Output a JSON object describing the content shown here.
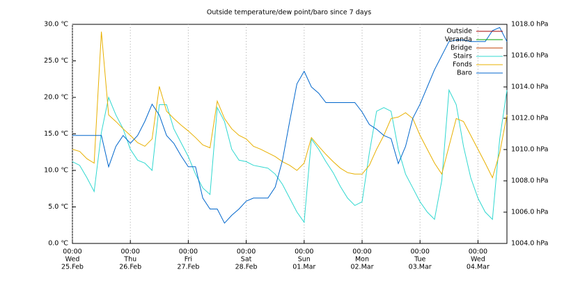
{
  "chart_data": {
    "type": "line",
    "title": "Outside temperature/dew point/baro since 7 days",
    "x": [
      0,
      3,
      6,
      9,
      12,
      15,
      18,
      21,
      24,
      27,
      30,
      33,
      36,
      39,
      42,
      45,
      48,
      51,
      54,
      57,
      60,
      63,
      66,
      69,
      72,
      75,
      78,
      81,
      84,
      87,
      90,
      93,
      96,
      99,
      102,
      105,
      108,
      111,
      114,
      117,
      120,
      123,
      126,
      129,
      132,
      135,
      138,
      141,
      144,
      147,
      150,
      153,
      156,
      159,
      162,
      165,
      168,
      171,
      174,
      177,
      180
    ],
    "xlim": [
      0,
      180
    ],
    "xticks": [
      {
        "value": 0,
        "label": [
          "00:00",
          "Wed",
          "25.Feb"
        ]
      },
      {
        "value": 24,
        "label": [
          "00:00",
          "Thu",
          "26.Feb"
        ]
      },
      {
        "value": 48,
        "label": [
          "00:00",
          "Fri",
          "27.Feb"
        ]
      },
      {
        "value": 72,
        "label": [
          "00:00",
          "Sat",
          "28.Feb"
        ]
      },
      {
        "value": 96,
        "label": [
          "00:00",
          "Sun",
          "01.Mar"
        ]
      },
      {
        "value": 120,
        "label": [
          "00:00",
          "Mon",
          "02.Mar"
        ]
      },
      {
        "value": 144,
        "label": [
          "00:00",
          "Tue",
          "03.Mar"
        ]
      },
      {
        "value": 168,
        "label": [
          "00:00",
          "Wed",
          "04.Mar"
        ]
      }
    ],
    "xgrid": true,
    "ylim": [
      0,
      30
    ],
    "yticks": [
      {
        "value": 0,
        "label": "0.0 ℃"
      },
      {
        "value": 5,
        "label": "5.0 ℃"
      },
      {
        "value": 10,
        "label": "10.0 ℃"
      },
      {
        "value": 15,
        "label": "15.0 ℃"
      },
      {
        "value": 20,
        "label": "20.0 ℃"
      },
      {
        "value": 25,
        "label": "25.0 ℃"
      },
      {
        "value": 30,
        "label": "30.0 ℃"
      }
    ],
    "y2lim": [
      1004,
      1018
    ],
    "y2ticks": [
      {
        "value": 1004,
        "label": "1004.0 hPa"
      },
      {
        "value": 1006,
        "label": "1006.0 hPa"
      },
      {
        "value": 1008,
        "label": "1008.0 hPa"
      },
      {
        "value": 1010,
        "label": "1010.0 hPa"
      },
      {
        "value": 1012,
        "label": "1012.0 hPa"
      },
      {
        "value": 1014,
        "label": "1014.0 hPa"
      },
      {
        "value": 1016,
        "label": "1016.0 hPa"
      },
      {
        "value": 1018,
        "label": "1018.0 hPa"
      }
    ],
    "legend": "top-right",
    "series": [
      {
        "name": "Outside",
        "color": "#a00000",
        "values": [
          null,
          null,
          null,
          null,
          null,
          null,
          null,
          null,
          null,
          null,
          null,
          null,
          null,
          null,
          null,
          null,
          null,
          null,
          null,
          null,
          null,
          null,
          null,
          null,
          null,
          null,
          null,
          null,
          null,
          null,
          null,
          null,
          null,
          null,
          null,
          null,
          null,
          null,
          null,
          null,
          null,
          null,
          null,
          null,
          null,
          null,
          null,
          null,
          null,
          null,
          null,
          null,
          null,
          null,
          null,
          null,
          null,
          null,
          null,
          null,
          null
        ]
      },
      {
        "name": "Veranda",
        "color": "#00a000",
        "values": [
          null,
          null,
          null,
          null,
          null,
          null,
          null,
          null,
          null,
          null,
          null,
          null,
          null,
          null,
          null,
          null,
          null,
          null,
          null,
          null,
          null,
          null,
          null,
          null,
          null,
          null,
          null,
          null,
          null,
          null,
          null,
          null,
          null,
          null,
          null,
          null,
          null,
          null,
          null,
          null,
          null,
          null,
          null,
          null,
          null,
          null,
          null,
          null,
          null,
          null,
          null,
          null,
          null,
          null,
          null,
          null,
          null,
          null,
          null,
          null,
          null
        ]
      },
      {
        "name": "Bridge",
        "color": "#c04000",
        "values": [
          null,
          null,
          null,
          null,
          null,
          null,
          null,
          null,
          null,
          null,
          null,
          null,
          null,
          null,
          null,
          null,
          null,
          null,
          null,
          null,
          null,
          null,
          null,
          null,
          null,
          null,
          null,
          null,
          null,
          null,
          null,
          null,
          null,
          null,
          null,
          null,
          null,
          null,
          null,
          null,
          null,
          null,
          null,
          null,
          null,
          null,
          null,
          null,
          null,
          null,
          null,
          null,
          null,
          null,
          null,
          null,
          null,
          null,
          null,
          null,
          null
        ]
      },
      {
        "name": "Stairs",
        "color": "#30d8d0",
        "values": [
          11.2,
          10.7,
          9.0,
          7.1,
          15.2,
          20.0,
          17.6,
          15.7,
          12.9,
          11.4,
          11.0,
          10.0,
          19.0,
          19.0,
          15.7,
          13.8,
          11.9,
          9.5,
          7.6,
          6.7,
          18.6,
          16.7,
          12.9,
          11.4,
          11.2,
          10.7,
          10.5,
          10.3,
          9.5,
          8.1,
          6.2,
          4.3,
          2.9,
          14.3,
          12.9,
          11.2,
          9.7,
          7.8,
          6.2,
          5.2,
          5.7,
          12.4,
          18.1,
          18.6,
          18.1,
          12.9,
          9.5,
          7.6,
          5.7,
          4.3,
          3.3,
          8.6,
          21.0,
          19.0,
          13.3,
          9.0,
          6.2,
          4.3,
          3.3,
          14.3,
          21.0
        ]
      },
      {
        "name": "Fonds",
        "color": "#e8b000",
        "values": [
          12.9,
          12.6,
          11.6,
          11.0,
          29,
          17.6,
          16.7,
          15.7,
          14.8,
          13.8,
          13.3,
          14.3,
          21.5,
          18.1,
          17.1,
          16.2,
          15.4,
          14.5,
          13.5,
          13.1,
          19.5,
          17.1,
          15.7,
          14.8,
          14.3,
          13.3,
          12.9,
          12.4,
          11.9,
          11.2,
          10.7,
          10.0,
          11.0,
          14.5,
          13.3,
          12.2,
          11.2,
          10.3,
          9.7,
          9.5,
          9.5,
          10.7,
          12.9,
          14.8,
          17.1,
          17.3,
          17.9,
          17.1,
          14.8,
          12.9,
          11.0,
          9.5,
          13.3,
          17.1,
          16.7,
          14.8,
          12.9,
          11.0,
          9.0,
          12.4,
          17.6
        ]
      },
      {
        "name": "Baro",
        "color": "#0066cc",
        "axis": "y2",
        "values": [
          1010.9,
          1010.9,
          1010.9,
          1010.9,
          1010.9,
          1008.9,
          1010.2,
          1010.9,
          1010.4,
          1010.9,
          1011.8,
          1012.9,
          1012.2,
          1010.9,
          1010.4,
          1009.6,
          1008.9,
          1008.9,
          1006.9,
          1006.2,
          1006.2,
          1005.3,
          1005.8,
          1006.2,
          1006.7,
          1006.9,
          1006.9,
          1006.9,
          1007.6,
          1009.3,
          1011.8,
          1014.2,
          1015.0,
          1014.0,
          1013.6,
          1013.0,
          1013.0,
          1013.0,
          1013.0,
          1013.0,
          1012.4,
          1011.6,
          1011.3,
          1010.9,
          1010.7,
          1009.1,
          1010.2,
          1012.0,
          1012.9,
          1014.0,
          1015.1,
          1016.0,
          1016.9,
          1017.0,
          1017.0,
          1016.9,
          1016.9,
          1016.9,
          1017.6,
          1017.8,
          1016.9
        ]
      }
    ]
  }
}
